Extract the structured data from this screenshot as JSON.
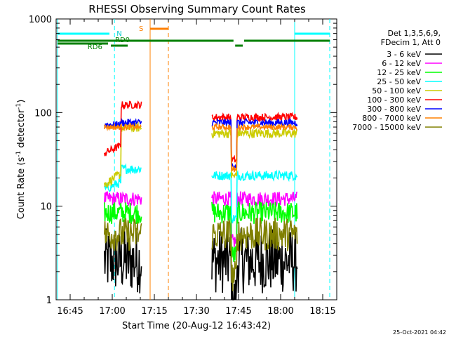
{
  "chart_data": {
    "type": "line",
    "title": "RHESSI Observing Summary Count Rates",
    "xlabel": "Start Time (20-Aug-12 16:43:42)",
    "ylabel_main": "Count Rate (s",
    "ylabel_sup1": "-1",
    "ylabel_mid": " detector",
    "ylabel_sup2": "-1",
    "ylabel_end": ")",
    "y_scale": "log",
    "xlim_minutes": [
      -5,
      95
    ],
    "ylim": [
      1,
      1000
    ],
    "x_ticks": [
      {
        "m": 0,
        "label": "16:45"
      },
      {
        "m": 15,
        "label": "17:00"
      },
      {
        "m": 30,
        "label": "17:15"
      },
      {
        "m": 45,
        "label": "17:30"
      },
      {
        "m": 60,
        "label": "17:45"
      },
      {
        "m": 75,
        "label": "18:00"
      },
      {
        "m": 90,
        "label": "18:15"
      }
    ],
    "y_ticks": [
      {
        "v": 1,
        "label": "1"
      },
      {
        "v": 10,
        "label": "10"
      },
      {
        "v": 100,
        "label": "100"
      },
      {
        "v": 1000,
        "label": "1000"
      }
    ],
    "legend_header": [
      "Det 1,3,5,6,9,",
      "FDecim 1, Att 0"
    ],
    "series": [
      {
        "name": "3 - 6 keV",
        "color": "#000000",
        "base": 2.6,
        "noise": 0.35
      },
      {
        "name": "6 - 12 keV",
        "color": "#ff00ff",
        "base": 12,
        "noise": 0.08
      },
      {
        "name": "12 - 25 keV",
        "color": "#00ff00",
        "base": 8.5,
        "noise": 0.12
      },
      {
        "name": "25 - 50 keV",
        "color": "#00ffff",
        "base": 25,
        "noise": 0.05
      },
      {
        "name": "50 - 100 keV",
        "color": "#cccc00",
        "base": 60,
        "noise": 0.05
      },
      {
        "name": "100 - 300 keV",
        "color": "#ff0000",
        "base": 105,
        "noise": 0.04
      },
      {
        "name": "300 - 800 keV",
        "color": "#0000ff",
        "base": 78,
        "noise": 0.04
      },
      {
        "name": "800 - 7000 keV",
        "color": "#ff8000",
        "base": 70,
        "noise": 0.03
      },
      {
        "name": "7000 - 15000 keV",
        "color": "#808000",
        "base": 5,
        "noise": 0.18
      }
    ],
    "data_segments": [
      {
        "start": 12.2,
        "end": 25.5
      },
      {
        "start": 50.5,
        "end": 81.0
      }
    ],
    "markers": {
      "saa": {
        "label": "S",
        "start": 28.5,
        "end": 35.0
      },
      "night": {
        "label": "N",
        "start": -4.5,
        "end": 15.8,
        "start2": 80.0,
        "end2": 92.5
      },
      "rd0_label": "RD0",
      "rd6_label": "RD6"
    },
    "footer_date": "25-Oct-2021 04:42"
  }
}
